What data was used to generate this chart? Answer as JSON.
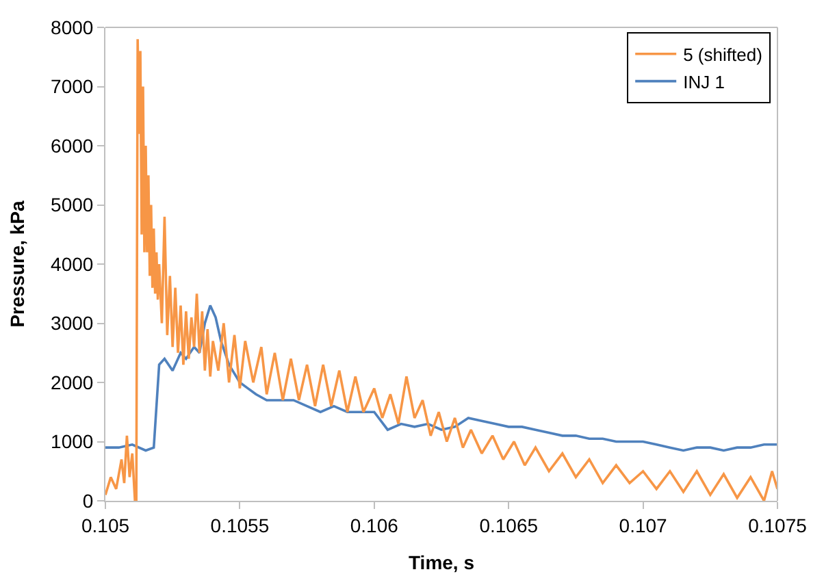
{
  "chart_data": {
    "type": "line",
    "xlabel": "Time, s",
    "ylabel": "Pressure, kPa",
    "xlim": [
      0.105,
      0.1075
    ],
    "xticks": [
      0.105,
      0.1055,
      0.106,
      0.1065,
      0.107,
      0.1075
    ],
    "ylim": [
      0,
      8000
    ],
    "yticks": [
      0,
      1000,
      2000,
      3000,
      4000,
      5000,
      6000,
      7000,
      8000
    ],
    "legend": "top right",
    "marker": "none",
    "line_style": "solid",
    "series": [
      {
        "name": "5 (shifted)",
        "color": "#f79646",
        "x": [
          0.105,
          0.10502,
          0.10504,
          0.10506,
          0.10507,
          0.10508,
          0.10509,
          0.1051,
          0.10511,
          0.105115,
          0.10512,
          0.105125,
          0.10513,
          0.105135,
          0.10514,
          0.105145,
          0.10515,
          0.105155,
          0.10516,
          0.105165,
          0.10517,
          0.105175,
          0.10518,
          0.105185,
          0.10519,
          0.105195,
          0.1052,
          0.10521,
          0.10522,
          0.10523,
          0.10524,
          0.10525,
          0.10526,
          0.10527,
          0.10528,
          0.10529,
          0.1053,
          0.10531,
          0.10532,
          0.10533,
          0.10534,
          0.10535,
          0.10536,
          0.10537,
          0.10538,
          0.10539,
          0.1054,
          0.10542,
          0.10544,
          0.10546,
          0.10548,
          0.1055,
          0.10552,
          0.10555,
          0.10558,
          0.1056,
          0.10563,
          0.10566,
          0.10569,
          0.10572,
          0.10575,
          0.10578,
          0.10581,
          0.10584,
          0.10587,
          0.1059,
          0.10593,
          0.10596,
          0.106,
          0.10603,
          0.10606,
          0.10609,
          0.10612,
          0.10615,
          0.10618,
          0.10621,
          0.10624,
          0.10627,
          0.1063,
          0.10633,
          0.10636,
          0.1064,
          0.10644,
          0.10648,
          0.10652,
          0.10656,
          0.1066,
          0.10665,
          0.1067,
          0.10675,
          0.1068,
          0.10685,
          0.1069,
          0.10695,
          0.107,
          0.10705,
          0.1071,
          0.10715,
          0.1072,
          0.10725,
          0.1073,
          0.10735,
          0.1074,
          0.10745,
          0.10748,
          0.1075
        ],
        "values": [
          100,
          400,
          200,
          700,
          300,
          1100,
          400,
          800,
          0,
          0,
          7800,
          6200,
          7600,
          4500,
          7000,
          4200,
          6000,
          4200,
          5500,
          3800,
          5000,
          3600,
          4600,
          3500,
          4200,
          3400,
          4000,
          3000,
          4800,
          2800,
          3800,
          2600,
          3600,
          2500,
          3300,
          2300,
          3200,
          2400,
          3100,
          2600,
          3500,
          2500,
          3200,
          2200,
          2900,
          2100,
          2700,
          2200,
          3000,
          2000,
          2800,
          1900,
          2700,
          2000,
          2600,
          1800,
          2500,
          1700,
          2400,
          1700,
          2300,
          1600,
          2300,
          1600,
          2200,
          1500,
          2100,
          1500,
          1900,
          1400,
          1800,
          1300,
          2100,
          1400,
          1700,
          1100,
          1500,
          1000,
          1400,
          900,
          1200,
          800,
          1100,
          700,
          1000,
          600,
          900,
          500,
          800,
          400,
          700,
          300,
          600,
          300,
          500,
          200,
          500,
          150,
          500,
          100,
          450,
          50,
          400,
          0,
          500,
          200
        ]
      },
      {
        "name": "INJ 1",
        "color": "#4f81bd",
        "x": [
          0.105,
          0.10505,
          0.1051,
          0.10515,
          0.10518,
          0.1052,
          0.10522,
          0.10525,
          0.10528,
          0.1053,
          0.10533,
          0.10535,
          0.10537,
          0.10539,
          0.10541,
          0.10543,
          0.10546,
          0.1055,
          0.10553,
          0.10556,
          0.1056,
          0.10565,
          0.1057,
          0.10575,
          0.1058,
          0.10585,
          0.1059,
          0.10595,
          0.106,
          0.10605,
          0.1061,
          0.10615,
          0.1062,
          0.10625,
          0.1063,
          0.10635,
          0.1064,
          0.10645,
          0.1065,
          0.10655,
          0.1066,
          0.10665,
          0.1067,
          0.10675,
          0.1068,
          0.10685,
          0.1069,
          0.10695,
          0.107,
          0.10705,
          0.1071,
          0.10715,
          0.1072,
          0.10725,
          0.1073,
          0.10735,
          0.1074,
          0.10745,
          0.1075
        ],
        "values": [
          900,
          900,
          950,
          850,
          900,
          2300,
          2400,
          2200,
          2500,
          2400,
          2600,
          2500,
          3000,
          3300,
          3100,
          2700,
          2300,
          2000,
          1900,
          1800,
          1700,
          1700,
          1700,
          1600,
          1500,
          1600,
          1500,
          1500,
          1500,
          1200,
          1300,
          1250,
          1300,
          1200,
          1250,
          1400,
          1350,
          1300,
          1250,
          1250,
          1200,
          1150,
          1100,
          1100,
          1050,
          1050,
          1000,
          1000,
          1000,
          950,
          900,
          850,
          900,
          900,
          850,
          900,
          900,
          950,
          950
        ]
      }
    ]
  }
}
